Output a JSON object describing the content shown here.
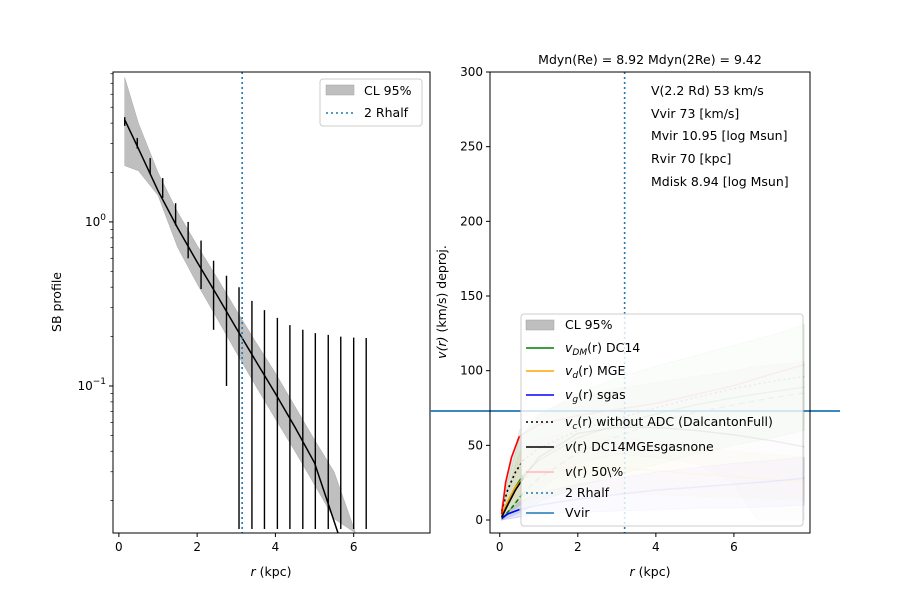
{
  "chart_data": [
    {
      "type": "line",
      "panel": "left",
      "xlabel_italic": "r",
      "xlabel_rest": " (kpc)",
      "ylabel": "SB profile",
      "xlim": [
        -0.15,
        7.95
      ],
      "ylim": [
        0.0127,
        8.2
      ],
      "yscale": "log",
      "xticks": [
        0,
        2,
        4,
        6
      ],
      "xtick_labels": [
        "0",
        "2",
        "4",
        "6"
      ],
      "yticks_major": [
        {
          "value": 1,
          "base": "10",
          "exp": "0"
        },
        {
          "value": 0.1,
          "base": "10",
          "exp": "−1"
        }
      ],
      "legend": {
        "placement": "upper right",
        "entries": [
          {
            "label": "CL 95%",
            "kind": "patch",
            "color": "#bfbfbf"
          },
          {
            "label": "2 Rhalf",
            "kind": "dotted",
            "color": "#1f77b4"
          }
        ]
      },
      "rhalf2": 3.15,
      "model": {
        "r": [
          0.15,
          0.5,
          1.0,
          1.5,
          2.0,
          2.5,
          3.0,
          3.5,
          4.0,
          4.5,
          5.0,
          5.6
        ],
        "sb": [
          4.2,
          2.8,
          1.55,
          0.92,
          0.57,
          0.36,
          0.225,
          0.142,
          0.09,
          0.056,
          0.034,
          0.0127
        ]
      },
      "band": {
        "r": [
          0.15,
          0.5,
          1.0,
          1.5,
          2.0,
          2.5,
          3.0,
          3.5,
          4.0,
          4.5,
          5.0,
          5.5,
          6.05
        ],
        "upper": [
          7.6,
          4.0,
          2.0,
          1.15,
          0.72,
          0.46,
          0.29,
          0.185,
          0.12,
          0.075,
          0.047,
          0.03,
          0.0127
        ],
        "lower": [
          2.2,
          2.05,
          1.45,
          0.7,
          0.42,
          0.26,
          0.16,
          0.1,
          0.063,
          0.04,
          0.025,
          0.0155,
          0.0127
        ]
      },
      "points": {
        "r": [
          0.15,
          0.47,
          0.8,
          1.12,
          1.45,
          1.77,
          2.1,
          2.42,
          2.75,
          3.07,
          3.4,
          3.72,
          4.05,
          4.37,
          4.7,
          5.02,
          5.35,
          5.67,
          6.0,
          6.32
        ],
        "y": [
          4.1,
          3.0,
          2.2,
          1.6,
          1.1,
          0.8,
          0.55,
          0.38,
          0.26,
          0.19,
          0.13,
          0.095,
          0.068,
          0.048,
          0.034,
          0.024,
          0.017,
          0.013,
          0.013,
          0.013
        ],
        "err_hi": [
          4.35,
          3.25,
          2.45,
          1.85,
          1.3,
          1.0,
          0.77,
          0.58,
          0.47,
          0.4,
          0.33,
          0.29,
          0.26,
          0.235,
          0.22,
          0.21,
          0.205,
          0.2,
          0.197,
          0.196
        ],
        "err_lo": [
          3.85,
          2.8,
          1.95,
          1.4,
          0.95,
          0.6,
          0.39,
          0.22,
          0.1,
          0.0127,
          0.0127,
          0.0127,
          0.0127,
          0.0127,
          0.0127,
          0.0127,
          0.0127,
          0.0127,
          0.0127,
          0.0127
        ]
      }
    },
    {
      "type": "line",
      "panel": "right",
      "title": "Mdyn(Re) = 8.92  Mdyn(2Re) = 9.42",
      "xlabel_italic": "r",
      "xlabel_rest": " (kpc)",
      "ylabel": "v(r) (km/s) deproj.",
      "ylabel_italic": "v(r)",
      "ylabel_rest": " (km/s) deproj.",
      "xlim": [
        -0.25,
        7.95
      ],
      "ylim": [
        -8.7,
        300
      ],
      "xticks": [
        0,
        2,
        4,
        6
      ],
      "xtick_labels": [
        "0",
        "2",
        "4",
        "6"
      ],
      "yticks": [
        0,
        50,
        100,
        150,
        200,
        250,
        300
      ],
      "ytick_labels": [
        "0",
        "50",
        "100",
        "150",
        "200",
        "250",
        "300"
      ],
      "annotations": [
        "V(2.2 Rd) 53 km/s",
        "Vvir 73 [km/s]",
        "Mvir 10.95 [log Msun]",
        "Rvir 70 [kpc]",
        "Mdisk 8.94 [log Msun]"
      ],
      "rhalf2": 3.2,
      "vvir": 73,
      "legend": {
        "placement": "lower center",
        "entries": [
          {
            "label": "CL 95%",
            "kind": "patch",
            "color": "#bfbfbf"
          },
          {
            "label_sub": [
              "v",
              "DM",
              "(r) DC14"
            ],
            "kind": "line",
            "color": "#008000"
          },
          {
            "label_sub": [
              "v",
              "d",
              "(r) MGE"
            ],
            "kind": "line",
            "color": "#ffa500"
          },
          {
            "label_sub": [
              "v",
              "g",
              "(r) sgas"
            ],
            "kind": "line",
            "color": "#0000ff"
          },
          {
            "label_sub": [
              "v",
              "c",
              "(r) without ADC (DalcantonFull)"
            ],
            "kind": "dotted",
            "color": "#000000"
          },
          {
            "label_sub": [
              "v",
              "",
              "(r) DC14MGEsgasnone"
            ],
            "kind": "line",
            "color": "#000000"
          },
          {
            "label_sub": [
              "v",
              "",
              "(r) 50\\%"
            ],
            "kind": "line",
            "color": "#ffb6c1"
          },
          {
            "label": "2 Rhalf",
            "kind": "dotted",
            "color": "#1f77b4"
          },
          {
            "label": "Vvir",
            "kind": "line",
            "color": "#1f77b4"
          }
        ]
      },
      "series": [
        {
          "name": "v_DM(r) DC14",
          "color": "#008000",
          "r": [
            0.05,
            0.2,
            0.4,
            0.6,
            1,
            2,
            3,
            4,
            5,
            6,
            7,
            7.8
          ],
          "v": [
            3,
            12,
            22,
            30,
            40,
            55,
            64,
            71,
            77,
            82,
            86,
            89
          ]
        },
        {
          "name": "v_DM dashed",
          "color": "#008000",
          "dash": true,
          "r": [
            0.05,
            0.3,
            0.6,
            1,
            2,
            3,
            4,
            5,
            6,
            7,
            7.8
          ],
          "v": [
            1,
            8,
            18,
            28,
            45,
            56,
            65,
            72,
            77,
            82,
            85
          ]
        },
        {
          "name": "v_d(r) MGE",
          "color": "#ffa500",
          "r": [
            0.05,
            0.2,
            0.4,
            0.6,
            1,
            2,
            3,
            4,
            5,
            6,
            7,
            7.8
          ],
          "v": [
            3,
            12,
            22,
            28,
            33,
            36,
            35,
            33,
            31,
            29,
            27,
            26
          ]
        },
        {
          "name": "v_g(r) sgas",
          "color": "#0000ff",
          "r": [
            0.05,
            0.2,
            0.5,
            1,
            2,
            3,
            4,
            5,
            6,
            7,
            7.8
          ],
          "v": [
            1,
            4,
            7,
            10,
            14,
            17,
            20,
            22,
            24,
            26,
            28
          ]
        },
        {
          "name": "v_c(r) without ADC",
          "color": "#000000",
          "dotted": true,
          "r": [
            0.05,
            0.2,
            0.4,
            0.6,
            1,
            2,
            3,
            4,
            5,
            6,
            7,
            7.8
          ],
          "v": [
            6,
            20,
            32,
            40,
            48,
            60,
            68,
            75,
            82,
            88,
            93,
            96
          ]
        },
        {
          "name": "v(r) DC14MGEsgasnone",
          "color": "#000000",
          "r": [
            0.05,
            0.2,
            0.4,
            0.6,
            1,
            2,
            3,
            4,
            5,
            6,
            7,
            7.8
          ],
          "v": [
            2,
            10,
            20,
            28,
            42,
            58,
            62,
            62,
            60,
            57,
            53,
            49
          ]
        },
        {
          "name": "v(r) 50%",
          "color": "#ff0000",
          "r": [
            0.05,
            0.15,
            0.3,
            0.5,
            1,
            2,
            3,
            4,
            5,
            6,
            7,
            7.8
          ],
          "v": [
            4,
            25,
            42,
            56,
            64,
            70,
            74,
            78,
            84,
            90,
            98,
            104
          ]
        }
      ],
      "bands": [
        {
          "name": "DM band",
          "color": "#008000",
          "r": [
            0.05,
            0.5,
            1,
            2,
            3,
            4,
            5,
            6,
            7,
            7.8
          ],
          "upper": [
            10,
            55,
            70,
            85,
            95,
            103,
            110,
            117,
            124,
            131
          ],
          "lower": [
            0,
            5,
            12,
            22,
            30,
            37,
            44,
            50,
            55,
            60
          ]
        },
        {
          "name": "disk band",
          "color": "#ffa500",
          "r": [
            0.05,
            0.5,
            1,
            2,
            3,
            4,
            5,
            6,
            7,
            7.8
          ],
          "upper": [
            8,
            45,
            55,
            58,
            56,
            52,
            49,
            46,
            44,
            42
          ],
          "lower": [
            0,
            10,
            15,
            18,
            18,
            17,
            16,
            15,
            14,
            13
          ]
        },
        {
          "name": "gas band",
          "color": "#0000ff",
          "r": [
            0.05,
            0.5,
            1,
            2,
            3,
            4,
            5,
            6,
            7,
            7.8
          ],
          "upper": [
            2,
            12,
            18,
            24,
            28,
            32,
            35,
            38,
            40,
            42
          ],
          "lower": [
            0,
            2,
            4,
            5,
            6,
            7,
            8,
            8,
            9,
            10
          ]
        },
        {
          "name": "total band",
          "color": "#808080",
          "r": [
            0.05,
            0.5,
            1,
            2,
            3,
            4,
            5,
            6,
            6.6,
            7.8
          ],
          "upper": [
            10,
            60,
            72,
            82,
            88,
            92,
            96,
            100,
            103,
            106
          ],
          "lower": [
            0,
            10,
            20,
            38,
            44,
            42,
            38,
            25,
            0,
            0
          ]
        }
      ]
    }
  ]
}
